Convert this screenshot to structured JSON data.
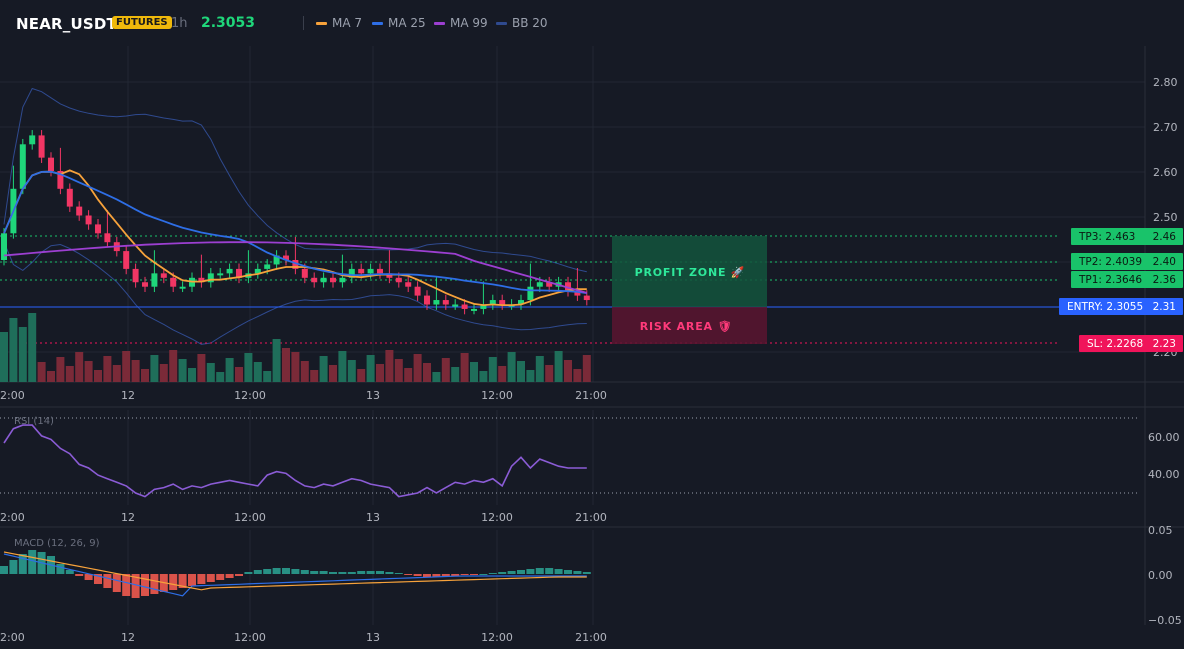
{
  "header": {
    "symbol": "NEAR_USDT",
    "badge": "FUTURES",
    "timeframe": "1h",
    "price": "2.3053",
    "legend": [
      {
        "label": "MA 7",
        "color": "#f7a23b"
      },
      {
        "label": "MA 25",
        "color": "#2e6ee6"
      },
      {
        "label": "MA 99",
        "color": "#9c3fd1"
      },
      {
        "label": "BB 20",
        "color": "#2f4a8f"
      }
    ]
  },
  "colors": {
    "background": "#161a25",
    "up": "#1fd67a",
    "down": "#f23664",
    "grid": "#222734",
    "entry": "#2962ff",
    "sl": "#f0145a",
    "tp": "#19c36a"
  },
  "price_axis": {
    "ticks": [
      "2.80",
      "2.70",
      "2.60",
      "2.50",
      "2.40",
      "2.30",
      "2.20"
    ]
  },
  "time_axis": {
    "ticks": [
      "2:00",
      "12",
      "12:00",
      "13",
      "12:00",
      "21:00"
    ]
  },
  "levels": {
    "tp3": {
      "label": "TP3: 2.463",
      "axis": "2.46"
    },
    "tp2": {
      "label": "TP2: 2.4039",
      "axis": "2.40"
    },
    "tp1": {
      "label": "TP1: 2.3646",
      "axis": "2.36"
    },
    "entry": {
      "label": "ENTRY: 2.3055",
      "axis": "2.31"
    },
    "sl": {
      "label": "SL: 2.2268",
      "axis": "2.23"
    }
  },
  "zones": {
    "profit": "PROFIT ZONE 🚀",
    "risk": "RISK AREA 🛡"
  },
  "rsi": {
    "label": "RSI (14)",
    "ticks": [
      "60.00",
      "40.00"
    ]
  },
  "macd": {
    "label": "MACD (12, 26, 9)",
    "ticks": [
      "0.05",
      "0.00",
      "−0.05"
    ]
  }
}
